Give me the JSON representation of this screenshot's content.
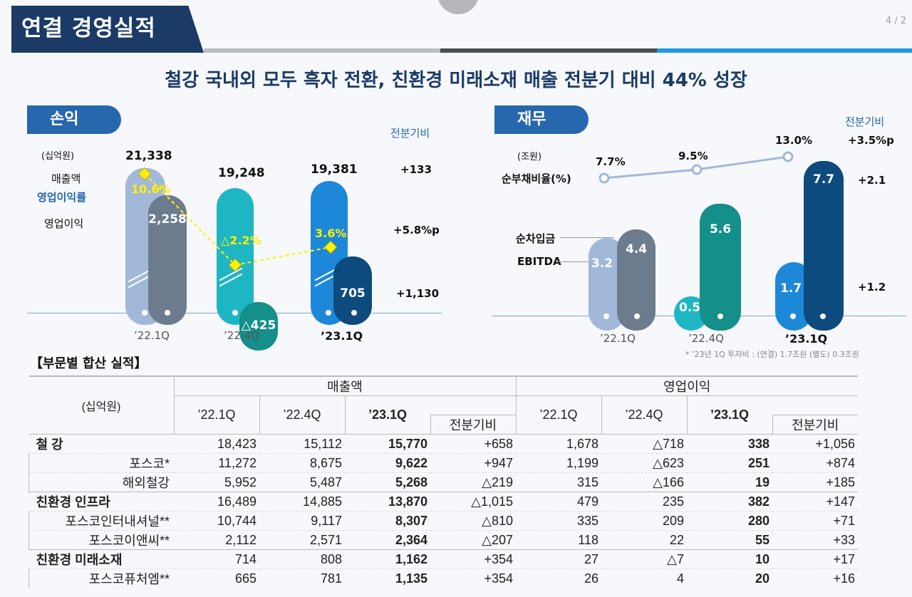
{
  "header": {
    "title": "연결 경영실적",
    "page": "4 / 2",
    "headline": "철강 국내외 모두 흑자 전환, 친환경 미래소재 매출 전분기 대비 44% 성장"
  },
  "pl": {
    "tab": "손익",
    "unit": "(십억원)",
    "compare_header": "전분기비",
    "labels": {
      "sales": "매출액",
      "margin": "영업이익률",
      "op": "영업이익"
    },
    "periods": [
      "’22.1Q",
      "’22.4Q",
      "’23.1Q"
    ],
    "sales": [
      "21,338",
      "19,248",
      "19,381"
    ],
    "op": [
      "2,258",
      "△425",
      "705"
    ],
    "margin": [
      "10.6%",
      "△2.2%",
      "3.6%"
    ],
    "compare": {
      "sales": "+133",
      "margin": "+5.8%p",
      "op": "+1,130"
    }
  },
  "fin": {
    "tab": "재무",
    "unit": "(조원)",
    "compare_header": "전분기비",
    "labels": {
      "ratio": "순부채비율(%)",
      "debt": "순차입금",
      "ebitda": "EBITDA"
    },
    "periods": [
      "’22.1Q",
      "’22.4Q",
      "’23.1Q"
    ],
    "ratio": [
      "7.7%",
      "9.5%",
      "13.0%"
    ],
    "debt": [
      "3.2",
      "0.5",
      "1.7"
    ],
    "ebitda": [
      "4.4",
      "5.6",
      "7.7"
    ],
    "compare": {
      "ratio": "+3.5%p",
      "ebitda": "+2.1",
      "debt": "+1.2"
    },
    "footnote": "* ’23년 1Q 투자비 : (연결) 1.7조원 (별도) 0.3조원"
  },
  "segment": {
    "title": "【부문별 합산 실적】",
    "unit": "(십억원)",
    "group_sales": "매출액",
    "group_op": "영업이익",
    "cols": [
      "’22.1Q",
      "’22.4Q",
      "’23.1Q",
      "전분기비"
    ],
    "rows": [
      {
        "name": "철 강",
        "level": 0,
        "v": [
          "18,423",
          "15,112",
          "15,770",
          "+658",
          "1,678",
          "△718",
          "338",
          "+1,056"
        ]
      },
      {
        "name": "포스코*",
        "level": 1,
        "v": [
          "11,272",
          "8,675",
          "9,622",
          "+947",
          "1,199",
          "△623",
          "251",
          "+874"
        ]
      },
      {
        "name": "해외철강",
        "level": 1,
        "v": [
          "5,952",
          "5,487",
          "5,268",
          "△219",
          "315",
          "△166",
          "19",
          "+185"
        ]
      },
      {
        "name": "친환경 인프라",
        "level": 0,
        "v": [
          "16,489",
          "14,885",
          "13,870",
          "△1,015",
          "479",
          "235",
          "382",
          "+147"
        ]
      },
      {
        "name": "포스코인터내셔널**",
        "level": 1,
        "v": [
          "10,744",
          "9,117",
          "8,307",
          "△810",
          "335",
          "209",
          "280",
          "+71"
        ]
      },
      {
        "name": "포스코이앤씨**",
        "level": 1,
        "v": [
          "2,112",
          "2,571",
          "2,364",
          "△207",
          "118",
          "22",
          "55",
          "+33"
        ]
      },
      {
        "name": "친환경 미래소재",
        "level": 0,
        "v": [
          "714",
          "808",
          "1,162",
          "+354",
          "27",
          "△7",
          "10",
          "+17"
        ]
      },
      {
        "name": "포스코퓨처엠**",
        "level": 1,
        "v": [
          "665",
          "781",
          "1,135",
          "+354",
          "26",
          "4",
          "20",
          "+16"
        ]
      }
    ]
  },
  "colors": {
    "navy": "#1b3a66",
    "blue": "#2667ad",
    "teal": "#1fb6c4",
    "darkteal": "#148f8a",
    "pale": "#a2b8d8",
    "slate": "#6d7b8e",
    "bright": "#1e88d8",
    "darknavy": "#0d4a7d",
    "yellow": "#fff200"
  }
}
